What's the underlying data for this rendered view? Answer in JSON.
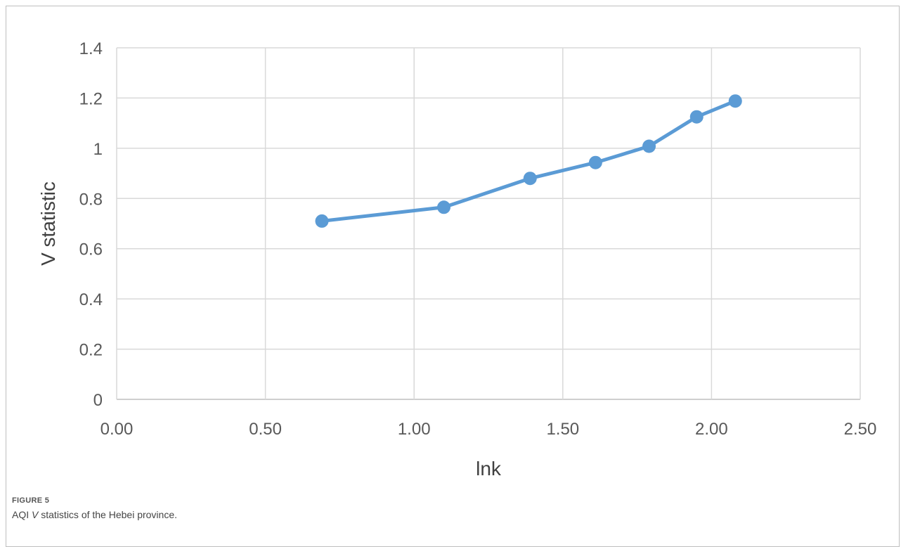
{
  "figure": {
    "label": "FIGURE 5",
    "caption_before": "AQI ",
    "caption_italic": "V",
    "caption_after": " statistics of the Hebei province."
  },
  "chart_data": {
    "type": "line",
    "title": "",
    "xlabel": "lnk",
    "ylabel": "V statistic",
    "xlim": [
      0,
      2.5
    ],
    "ylim": [
      0,
      1.4
    ],
    "x_ticks": [
      "0.00",
      "0.50",
      "1.00",
      "1.50",
      "2.00",
      "2.50"
    ],
    "y_ticks": [
      "0",
      "0.2",
      "0.4",
      "0.6",
      "0.8",
      "1",
      "1.2",
      "1.4"
    ],
    "grid": true,
    "legend": "none",
    "series": [
      {
        "x": [
          0.69,
          1.1,
          1.39,
          1.61,
          1.79,
          1.95,
          2.08
        ],
        "y": [
          0.71,
          0.765,
          0.88,
          0.943,
          1.008,
          1.125,
          1.188
        ],
        "color": "#5b9bd5"
      }
    ]
  }
}
